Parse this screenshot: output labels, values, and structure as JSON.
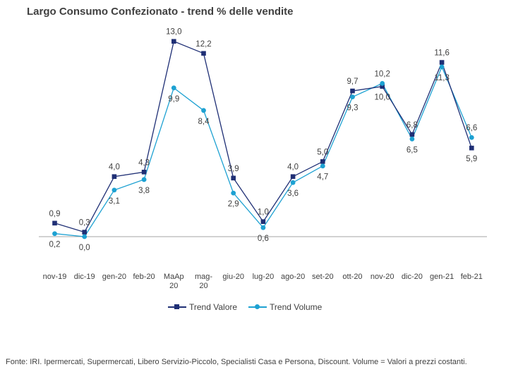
{
  "chart_data": {
    "type": "line",
    "title": "Largo Consumo Confezionato - trend % delle vendite",
    "categories": [
      "nov-19",
      "dic-19",
      "gen-20",
      "feb-20",
      "MaAp 20",
      "mag- 20",
      "giu-20",
      "lug-20",
      "ago-20",
      "set-20",
      "ott-20",
      "nov-20",
      "dic-20",
      "gen-21",
      "feb-21"
    ],
    "series": [
      {
        "name": "Trend Valore",
        "color": "#1F2F75",
        "marker": "square",
        "values": [
          0.9,
          0.3,
          4.0,
          4.3,
          13.0,
          12.2,
          3.9,
          1.0,
          4.0,
          5.0,
          9.7,
          10.0,
          6.8,
          11.6,
          5.9
        ],
        "labels": [
          "0,9",
          "0,3",
          "4,0",
          "4,3",
          "13,0",
          "12,2",
          "3,9",
          "1,0",
          "4,0",
          "5,0",
          "9,7",
          "10,0",
          "6,8",
          "11,6",
          "5,9"
        ]
      },
      {
        "name": "Trend Volume",
        "color": "#1DA1D2",
        "marker": "circle",
        "values": [
          0.2,
          0.0,
          3.1,
          3.8,
          9.9,
          8.4,
          2.9,
          0.6,
          3.6,
          4.7,
          9.3,
          10.2,
          6.5,
          11.3,
          6.6
        ],
        "labels": [
          "0,2",
          "0,0",
          "3,1",
          "3,8",
          "9,9",
          "8,4",
          "2,9",
          "0,6",
          "3,6",
          "4,7",
          "9,3",
          "10,2",
          "6,5",
          "11,3",
          "6,6"
        ]
      }
    ],
    "ylim": [
      -0.3,
      14.3
    ],
    "grid": false,
    "legend_position": "bottom"
  },
  "source_note": "Fonte: IRI. Ipermercati, Supermercati, Libero Servizio-Piccolo,  Specialisti Casa e Persona, Discount.   Volume =  Valori a prezzi costanti."
}
